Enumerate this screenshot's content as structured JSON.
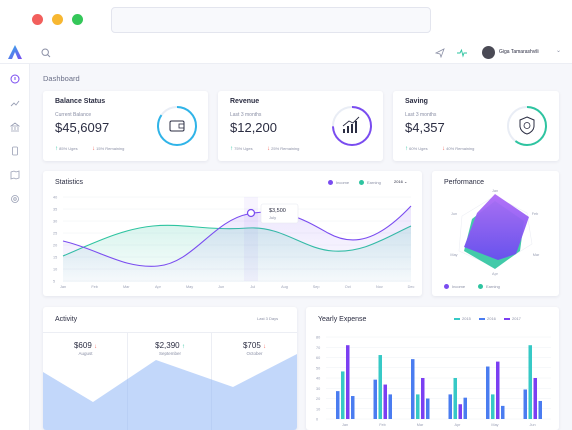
{
  "topbar": {
    "user_name": "Giga Tamarashvili"
  },
  "page_title": "Dashboard",
  "stats": [
    {
      "title": "Balance Status",
      "sub": "Current Balance",
      "value": "$45,6097",
      "up": "85% Uges",
      "down": "15% Remaining",
      "ring": "#2fb4e8",
      "icon": "wallet-icon"
    },
    {
      "title": "Revenue",
      "sub": "Last 3 months",
      "value": "$12,200",
      "up": "75% Uges",
      "down": "25% Remaining",
      "ring": "#7a4cf0",
      "icon": "growth-icon"
    },
    {
      "title": "Saving",
      "sub": "Last 3 months",
      "value": "$4,357",
      "up": "60% Uges",
      "down": "40% Remaining",
      "ring": "#2ec4a0",
      "icon": "shield-money-icon"
    }
  ],
  "statistics": {
    "title": "Statistics",
    "legend": [
      "Income",
      "Earning"
    ],
    "year": "2016",
    "tooltip_value": "$3,500",
    "tooltip_label": "July",
    "y_ticks": [
      "40",
      "35",
      "30",
      "25",
      "20",
      "15",
      "10",
      "5"
    ],
    "x_ticks": [
      "Jan",
      "Feb",
      "Mar",
      "Apr",
      "May",
      "Jun",
      "Jul",
      "Aug",
      "Sep",
      "Oct",
      "Nov",
      "Dec"
    ]
  },
  "performance": {
    "title": "Performance",
    "axes": [
      "Jan",
      "Feb",
      "Mar",
      "Apr",
      "May",
      "Jun"
    ],
    "legend": [
      "Income",
      "Earning"
    ]
  },
  "activity": {
    "title": "Activity",
    "range": "Last 3 Days",
    "items": [
      {
        "value": "$609",
        "month": "August",
        "dir": "down"
      },
      {
        "value": "$2,390",
        "month": "September",
        "dir": "up"
      },
      {
        "value": "$705",
        "month": "October",
        "dir": "down"
      }
    ]
  },
  "expense": {
    "title": "Yearly Expense",
    "legend": [
      "2015",
      "2016",
      "2017"
    ],
    "y_ticks": [
      "80",
      "70",
      "60",
      "50",
      "40",
      "30",
      "20",
      "10",
      "0"
    ],
    "x_ticks": [
      "Jan",
      "Feb",
      "Mar",
      "Apr",
      "May",
      "Jun"
    ]
  },
  "colors": {
    "income": "#7a4cf0",
    "earning": "#2ec4a0",
    "blue": "#4a7cf0",
    "teal": "#36c9c6",
    "purple": "#7b3ff2",
    "accent": "#7a4cf0"
  }
}
